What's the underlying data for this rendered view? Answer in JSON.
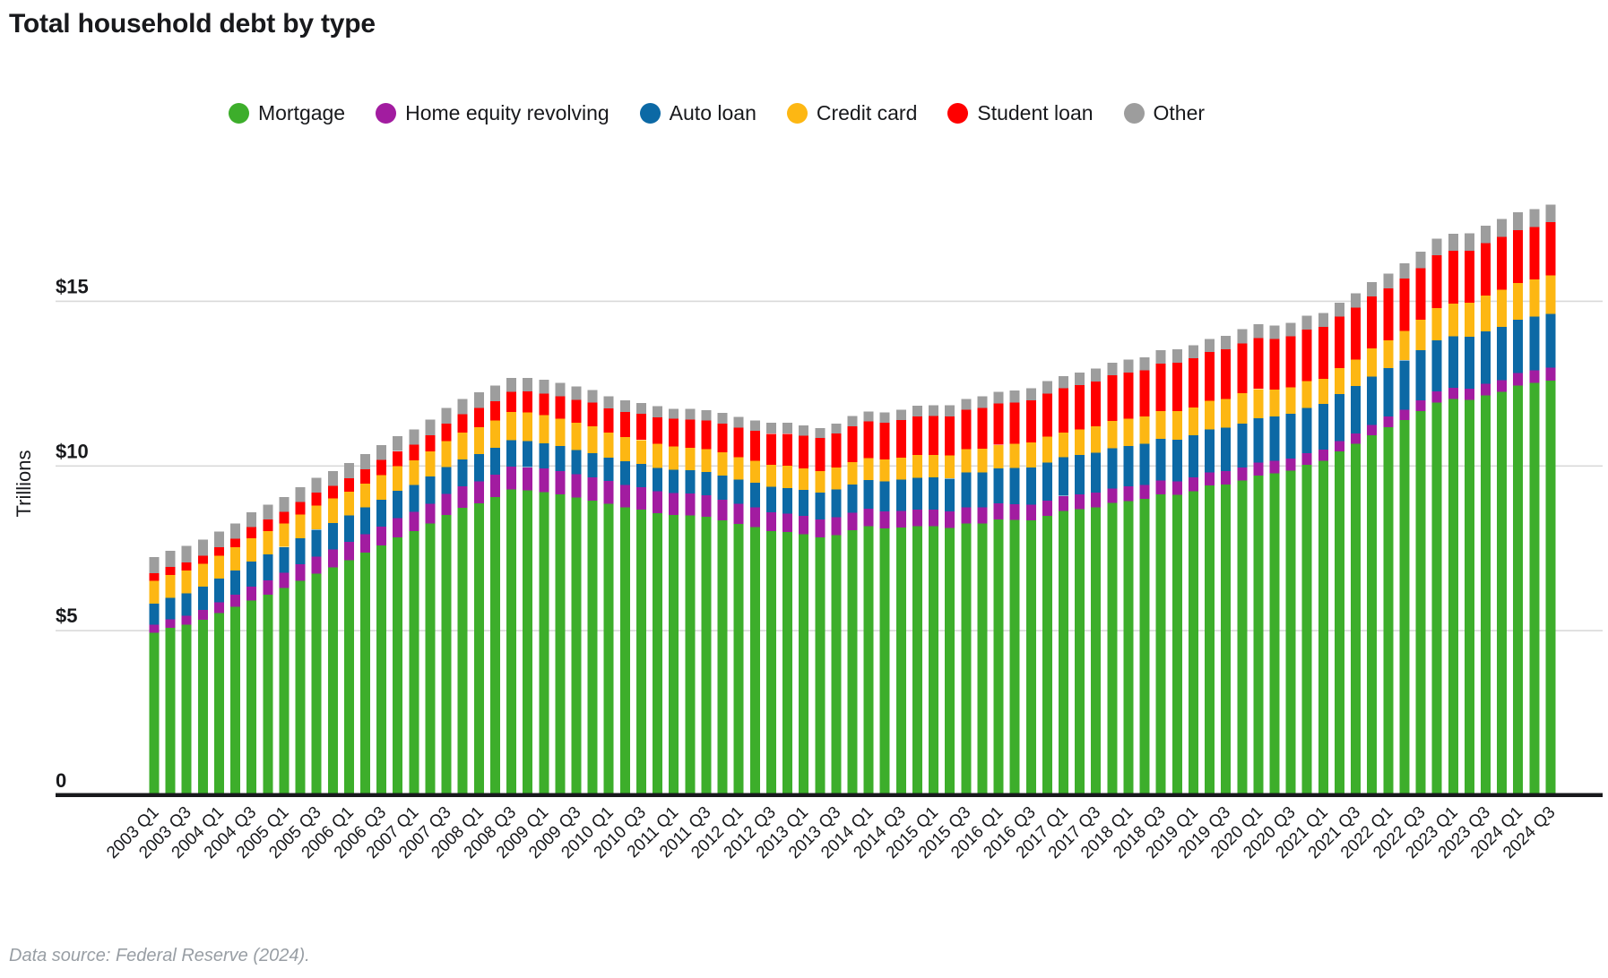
{
  "title": "Total household debt by type",
  "footer": "Data source: Federal Reserve (2024).",
  "colors": {
    "mortgage": "#3dae2b",
    "home_equity_revolving": "#a21ca0",
    "auto_loan": "#0c69a5",
    "credit_card": "#fdb713",
    "student_loan": "#ff0000",
    "other": "#9d9d9d",
    "gridline": "#d9d9d9",
    "axis_text": "#18191c",
    "baseline": "#18191c"
  },
  "chart_data": {
    "type": "bar",
    "stacked": true,
    "title": "Total household debt by type",
    "xlabel": "",
    "ylabel": "Trillions",
    "ylim": [
      0,
      18.5
    ],
    "grid": "horizontal",
    "legend_position": "top-center",
    "yticks": [
      {
        "value": 0,
        "label": "0"
      },
      {
        "value": 5,
        "label": "$5"
      },
      {
        "value": 10,
        "label": "$10"
      },
      {
        "value": 15,
        "label": "$15"
      }
    ],
    "xtick_label_every": 2,
    "categories": [
      "2003 Q1",
      "2003 Q2",
      "2003 Q3",
      "2003 Q4",
      "2004 Q1",
      "2004 Q2",
      "2004 Q3",
      "2004 Q4",
      "2005 Q1",
      "2005 Q2",
      "2005 Q3",
      "2005 Q4",
      "2006 Q1",
      "2006 Q2",
      "2006 Q3",
      "2006 Q4",
      "2007 Q1",
      "2007 Q2",
      "2007 Q3",
      "2007 Q4",
      "2008 Q1",
      "2008 Q2",
      "2008 Q3",
      "2008 Q4",
      "2009 Q1",
      "2009 Q2",
      "2009 Q3",
      "2009 Q4",
      "2010 Q1",
      "2010 Q2",
      "2010 Q3",
      "2010 Q4",
      "2011 Q1",
      "2011 Q2",
      "2011 Q3",
      "2011 Q4",
      "2012 Q1",
      "2012 Q2",
      "2012 Q3",
      "2012 Q4",
      "2013 Q1",
      "2013 Q2",
      "2013 Q3",
      "2013 Q4",
      "2014 Q1",
      "2014 Q2",
      "2014 Q3",
      "2014 Q4",
      "2015 Q1",
      "2015 Q2",
      "2015 Q3",
      "2015 Q4",
      "2016 Q1",
      "2016 Q2",
      "2016 Q3",
      "2016 Q4",
      "2017 Q1",
      "2017 Q2",
      "2017 Q3",
      "2017 Q4",
      "2018 Q1",
      "2018 Q2",
      "2018 Q3",
      "2018 Q4",
      "2019 Q1",
      "2019 Q2",
      "2019 Q3",
      "2019 Q4",
      "2020 Q1",
      "2020 Q2",
      "2020 Q3",
      "2020 Q4",
      "2021 Q1",
      "2021 Q2",
      "2021 Q3",
      "2021 Q4",
      "2022 Q1",
      "2022 Q2",
      "2022 Q3",
      "2022 Q4",
      "2023 Q1",
      "2023 Q2",
      "2023 Q3",
      "2023 Q4",
      "2024 Q1",
      "2024 Q2",
      "2024 Q3"
    ],
    "series": [
      {
        "name": "Mortgage",
        "color": "#3dae2b",
        "values": [
          4.94,
          5.08,
          5.18,
          5.33,
          5.53,
          5.72,
          5.92,
          6.09,
          6.29,
          6.51,
          6.73,
          6.92,
          7.14,
          7.37,
          7.59,
          7.83,
          8.02,
          8.25,
          8.52,
          8.73,
          8.87,
          9.06,
          9.29,
          9.26,
          9.21,
          9.14,
          9.04,
          8.95,
          8.85,
          8.74,
          8.67,
          8.56,
          8.52,
          8.5,
          8.46,
          8.35,
          8.24,
          8.15,
          8.03,
          7.99,
          7.93,
          7.84,
          7.9,
          8.05,
          8.17,
          8.1,
          8.13,
          8.17,
          8.17,
          8.12,
          8.26,
          8.25,
          8.37,
          8.36,
          8.35,
          8.48,
          8.63,
          8.69,
          8.74,
          8.88,
          8.94,
          9.0,
          9.14,
          9.12,
          9.24,
          9.41,
          9.44,
          9.56,
          9.71,
          9.78,
          9.86,
          10.04,
          10.16,
          10.44,
          10.67,
          10.93,
          11.18,
          11.39,
          11.67,
          11.92,
          12.04,
          12.01,
          12.14,
          12.25,
          12.44,
          12.52,
          12.59
        ]
      },
      {
        "name": "Home equity revolving",
        "color": "#a21ca0",
        "values": [
          0.24,
          0.26,
          0.27,
          0.3,
          0.33,
          0.37,
          0.42,
          0.44,
          0.47,
          0.5,
          0.52,
          0.54,
          0.56,
          0.56,
          0.57,
          0.59,
          0.59,
          0.61,
          0.63,
          0.65,
          0.67,
          0.68,
          0.69,
          0.7,
          0.71,
          0.71,
          0.71,
          0.71,
          0.7,
          0.69,
          0.68,
          0.67,
          0.66,
          0.66,
          0.65,
          0.63,
          0.61,
          0.59,
          0.57,
          0.56,
          0.55,
          0.54,
          0.54,
          0.53,
          0.53,
          0.52,
          0.51,
          0.51,
          0.51,
          0.5,
          0.49,
          0.49,
          0.49,
          0.48,
          0.47,
          0.47,
          0.46,
          0.45,
          0.45,
          0.44,
          0.44,
          0.43,
          0.42,
          0.41,
          0.41,
          0.4,
          0.4,
          0.39,
          0.39,
          0.38,
          0.36,
          0.35,
          0.34,
          0.32,
          0.32,
          0.32,
          0.32,
          0.32,
          0.32,
          0.34,
          0.34,
          0.34,
          0.35,
          0.36,
          0.38,
          0.38,
          0.39
        ]
      },
      {
        "name": "Auto loan",
        "color": "#0c69a5",
        "values": [
          0.64,
          0.66,
          0.68,
          0.7,
          0.72,
          0.74,
          0.76,
          0.78,
          0.78,
          0.79,
          0.82,
          0.81,
          0.8,
          0.81,
          0.82,
          0.82,
          0.81,
          0.82,
          0.82,
          0.82,
          0.82,
          0.81,
          0.81,
          0.79,
          0.77,
          0.75,
          0.74,
          0.73,
          0.71,
          0.71,
          0.71,
          0.71,
          0.71,
          0.71,
          0.71,
          0.73,
          0.74,
          0.75,
          0.77,
          0.78,
          0.79,
          0.81,
          0.85,
          0.86,
          0.88,
          0.91,
          0.94,
          0.96,
          0.97,
          1.0,
          1.05,
          1.06,
          1.07,
          1.1,
          1.14,
          1.16,
          1.17,
          1.19,
          1.21,
          1.22,
          1.23,
          1.24,
          1.27,
          1.27,
          1.28,
          1.3,
          1.32,
          1.33,
          1.35,
          1.34,
          1.36,
          1.37,
          1.38,
          1.42,
          1.44,
          1.46,
          1.47,
          1.5,
          1.52,
          1.55,
          1.56,
          1.58,
          1.6,
          1.61,
          1.62,
          1.63,
          1.64
        ]
      },
      {
        "name": "Credit card",
        "color": "#fdb713",
        "values": [
          0.69,
          0.69,
          0.69,
          0.7,
          0.7,
          0.7,
          0.71,
          0.72,
          0.71,
          0.72,
          0.73,
          0.74,
          0.72,
          0.73,
          0.74,
          0.76,
          0.75,
          0.76,
          0.79,
          0.82,
          0.82,
          0.83,
          0.85,
          0.87,
          0.85,
          0.83,
          0.82,
          0.81,
          0.75,
          0.74,
          0.73,
          0.73,
          0.7,
          0.69,
          0.69,
          0.7,
          0.68,
          0.67,
          0.67,
          0.68,
          0.66,
          0.66,
          0.67,
          0.68,
          0.66,
          0.67,
          0.68,
          0.7,
          0.68,
          0.7,
          0.71,
          0.73,
          0.71,
          0.73,
          0.75,
          0.78,
          0.76,
          0.78,
          0.81,
          0.83,
          0.82,
          0.83,
          0.84,
          0.87,
          0.85,
          0.87,
          0.88,
          0.93,
          0.89,
          0.82,
          0.81,
          0.82,
          0.77,
          0.79,
          0.8,
          0.86,
          0.84,
          0.89,
          0.93,
          0.99,
          0.99,
          1.03,
          1.08,
          1.13,
          1.12,
          1.14,
          1.17
        ]
      },
      {
        "name": "Student loan",
        "color": "#ff0000",
        "values": [
          0.24,
          0.24,
          0.25,
          0.25,
          0.26,
          0.26,
          0.33,
          0.35,
          0.36,
          0.38,
          0.39,
          0.39,
          0.41,
          0.43,
          0.46,
          0.45,
          0.48,
          0.5,
          0.53,
          0.55,
          0.58,
          0.59,
          0.61,
          0.64,
          0.66,
          0.68,
          0.7,
          0.72,
          0.74,
          0.76,
          0.79,
          0.81,
          0.84,
          0.85,
          0.87,
          0.87,
          0.9,
          0.91,
          0.94,
          0.97,
          0.99,
          1.0,
          1.03,
          1.08,
          1.11,
          1.12,
          1.13,
          1.16,
          1.19,
          1.19,
          1.2,
          1.23,
          1.26,
          1.26,
          1.28,
          1.31,
          1.34,
          1.34,
          1.36,
          1.38,
          1.41,
          1.41,
          1.44,
          1.46,
          1.49,
          1.48,
          1.5,
          1.51,
          1.54,
          1.54,
          1.55,
          1.56,
          1.58,
          1.57,
          1.58,
          1.58,
          1.59,
          1.59,
          1.57,
          1.6,
          1.6,
          1.57,
          1.6,
          1.6,
          1.6,
          1.59,
          1.61
        ]
      },
      {
        "name": "Other",
        "color": "#9d9d9d",
        "values": [
          0.48,
          0.49,
          0.5,
          0.48,
          0.47,
          0.46,
          0.46,
          0.45,
          0.44,
          0.45,
          0.45,
          0.45,
          0.46,
          0.46,
          0.46,
          0.45,
          0.46,
          0.47,
          0.47,
          0.47,
          0.48,
          0.47,
          0.43,
          0.42,
          0.42,
          0.41,
          0.41,
          0.39,
          0.37,
          0.35,
          0.33,
          0.33,
          0.31,
          0.32,
          0.32,
          0.33,
          0.32,
          0.31,
          0.33,
          0.33,
          0.31,
          0.3,
          0.3,
          0.32,
          0.3,
          0.31,
          0.32,
          0.33,
          0.33,
          0.34,
          0.33,
          0.36,
          0.35,
          0.36,
          0.37,
          0.38,
          0.37,
          0.39,
          0.39,
          0.39,
          0.39,
          0.39,
          0.4,
          0.41,
          0.4,
          0.4,
          0.41,
          0.43,
          0.42,
          0.41,
          0.41,
          0.42,
          0.41,
          0.42,
          0.43,
          0.43,
          0.44,
          0.47,
          0.5,
          0.5,
          0.52,
          0.53,
          0.53,
          0.55,
          0.54,
          0.54,
          0.54
        ]
      }
    ]
  }
}
